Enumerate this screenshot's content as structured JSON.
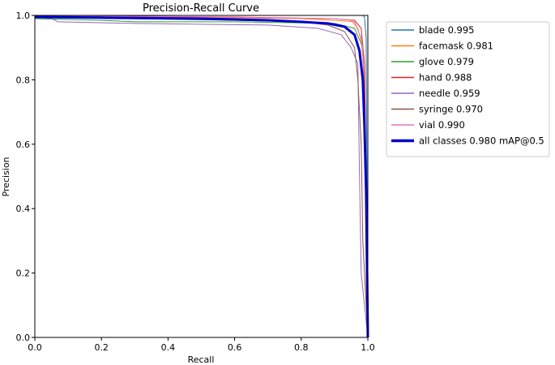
{
  "chart_data": {
    "type": "line",
    "title": "Precision-Recall Curve",
    "xlabel": "Recall",
    "ylabel": "Precision",
    "xlim": [
      0.0,
      1.0
    ],
    "ylim": [
      0.0,
      1.0
    ],
    "xticks": [
      "0.0",
      "0.2",
      "0.4",
      "0.6",
      "0.8",
      "1.0"
    ],
    "yticks": [
      "0.0",
      "0.2",
      "0.4",
      "0.6",
      "0.8",
      "1.0"
    ],
    "grid": false,
    "legend_position": "outside-right-top",
    "series": [
      {
        "name": "blade 0.995",
        "color": "#1f77b4",
        "points": [
          [
            0,
            1.0
          ],
          [
            0.5,
            1.0
          ],
          [
            0.95,
            1.0
          ],
          [
            0.985,
            1.0
          ],
          [
            0.99,
            0.995
          ],
          [
            0.995,
            0.93
          ],
          [
            1.0,
            0.0
          ]
        ]
      },
      {
        "name": "facemask 0.981",
        "color": "#ff7f0e",
        "points": [
          [
            0,
            1.0
          ],
          [
            0.4,
            0.995
          ],
          [
            0.8,
            0.99
          ],
          [
            0.9,
            0.985
          ],
          [
            0.96,
            0.98
          ],
          [
            0.98,
            0.93
          ],
          [
            0.99,
            0.8
          ],
          [
            1.0,
            0.0
          ]
        ]
      },
      {
        "name": "glove 0.979",
        "color": "#2ca02c",
        "points": [
          [
            0,
            0.99
          ],
          [
            0.2,
            0.985
          ],
          [
            0.3,
            0.98
          ],
          [
            0.6,
            0.98
          ],
          [
            0.9,
            0.975
          ],
          [
            0.96,
            0.96
          ],
          [
            0.985,
            0.9
          ],
          [
            0.99,
            0.7
          ],
          [
            1.0,
            0.0
          ]
        ]
      },
      {
        "name": "hand 0.988",
        "color": "#d62728",
        "points": [
          [
            0,
            1.0
          ],
          [
            0.6,
            0.995
          ],
          [
            0.9,
            0.99
          ],
          [
            0.96,
            0.985
          ],
          [
            0.98,
            0.96
          ],
          [
            0.99,
            0.85
          ],
          [
            0.995,
            0.5
          ],
          [
            1.0,
            0.0
          ]
        ]
      },
      {
        "name": "needle 0.959",
        "color": "#9467bd",
        "points": [
          [
            0,
            0.995
          ],
          [
            0.05,
            0.99
          ],
          [
            0.07,
            0.98
          ],
          [
            0.3,
            0.975
          ],
          [
            0.7,
            0.97
          ],
          [
            0.85,
            0.96
          ],
          [
            0.92,
            0.94
          ],
          [
            0.95,
            0.9
          ],
          [
            0.97,
            0.85
          ],
          [
            0.975,
            0.5
          ],
          [
            0.98,
            0.2
          ],
          [
            0.99,
            0.1
          ],
          [
            1.0,
            0.0
          ]
        ]
      },
      {
        "name": "syringe 0.970",
        "color": "#8c564b",
        "points": [
          [
            0,
            1.0
          ],
          [
            0.3,
            0.99
          ],
          [
            0.6,
            0.985
          ],
          [
            0.8,
            0.98
          ],
          [
            0.88,
            0.97
          ],
          [
            0.93,
            0.95
          ],
          [
            0.96,
            0.9
          ],
          [
            0.97,
            0.8
          ],
          [
            0.98,
            0.6
          ],
          [
            0.985,
            0.3
          ],
          [
            0.99,
            0.2
          ],
          [
            1.0,
            0.0
          ]
        ]
      },
      {
        "name": "vial 0.990",
        "color": "#e377c2",
        "points": [
          [
            0,
            1.0
          ],
          [
            0.5,
            0.995
          ],
          [
            0.9,
            0.99
          ],
          [
            0.95,
            0.985
          ],
          [
            0.97,
            0.96
          ],
          [
            0.985,
            0.9
          ],
          [
            0.99,
            0.7
          ],
          [
            0.995,
            0.4
          ],
          [
            1.0,
            0.0
          ]
        ]
      },
      {
        "name": "all classes 0.980 mAP@0.5",
        "color": "#0000cc",
        "bold": true,
        "points": [
          [
            0,
            0.995
          ],
          [
            0.2,
            0.993
          ],
          [
            0.5,
            0.99
          ],
          [
            0.7,
            0.985
          ],
          [
            0.8,
            0.98
          ],
          [
            0.88,
            0.975
          ],
          [
            0.93,
            0.965
          ],
          [
            0.96,
            0.94
          ],
          [
            0.975,
            0.89
          ],
          [
            0.985,
            0.8
          ],
          [
            0.99,
            0.65
          ],
          [
            0.995,
            0.45
          ],
          [
            1.0,
            0.0
          ]
        ]
      }
    ]
  }
}
